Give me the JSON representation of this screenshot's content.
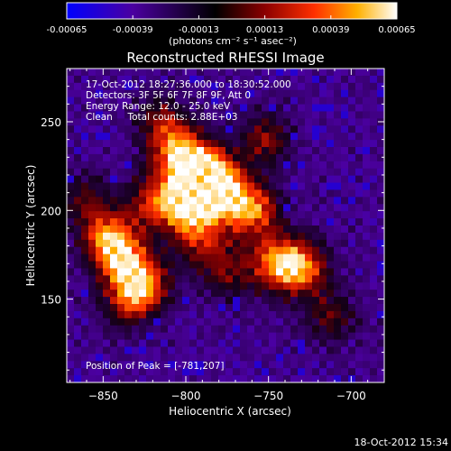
{
  "chart_data": {
    "type": "heatmap",
    "title": "Reconstructed RHESSI Image",
    "xlabel": "Heliocentric X (arcsec)",
    "ylabel": "Heliocentric Y (arcsec)",
    "xlim": [
      -872,
      -680
    ],
    "ylim": [
      103,
      280
    ],
    "x_ticks": [
      -850,
      -800,
      -750,
      -700
    ],
    "y_ticks": [
      150,
      200,
      250
    ],
    "colorbar": {
      "unit_label": "(photons cm⁻² s⁻¹ asec⁻²)",
      "range": [
        -0.00065,
        0.00065
      ],
      "tick_values": [
        -0.00065,
        -0.00039,
        -0.00013,
        0.00013,
        0.00039,
        0.00065
      ],
      "tick_labels": [
        "-0.00065",
        "-0.00039",
        "-0.00013",
        "0.00013",
        "0.00039",
        "0.00065"
      ],
      "colormap": [
        "#0000ff",
        "#4b00a0",
        "#000000",
        "#8b0000",
        "#ff3000",
        "#ffb000",
        "#ffffff"
      ]
    },
    "annotations": [
      "17-Oct-2012 18:27:36.000 to 18:30:52.000",
      "Detectors: 3F 5F 6F 7F 8F 9F, Att 0",
      "Energy Range: 12.0 - 25.0 keV",
      "Clean     Total counts: 2.88E+03"
    ],
    "peak_label": "Position of Peak = [-781,207]",
    "peak_position": [
      -781,
      207
    ],
    "emission_components": [
      {
        "x": -780,
        "y": 212,
        "peak": 1.0
      },
      {
        "x": -800,
        "y": 203,
        "peak": 0.85
      },
      {
        "x": -790,
        "y": 222,
        "peak": 0.82
      },
      {
        "x": -805,
        "y": 232,
        "peak": 0.75
      },
      {
        "x": -840,
        "y": 175,
        "peak": 0.72
      },
      {
        "x": -825,
        "y": 160,
        "peak": 0.7
      },
      {
        "x": -848,
        "y": 185,
        "peak": 0.55
      },
      {
        "x": -835,
        "y": 150,
        "peak": 0.5
      },
      {
        "x": -760,
        "y": 200,
        "peak": 0.78
      },
      {
        "x": -745,
        "y": 170,
        "peak": 0.68
      },
      {
        "x": -730,
        "y": 168,
        "peak": 0.7
      },
      {
        "x": -752,
        "y": 240,
        "peak": 0.45
      },
      {
        "x": -815,
        "y": 250,
        "peak": 0.4
      },
      {
        "x": -860,
        "y": 205,
        "peak": 0.35
      },
      {
        "x": -712,
        "y": 140,
        "peak": 0.35
      },
      {
        "x": -790,
        "y": 185,
        "peak": 0.5
      },
      {
        "x": -775,
        "y": 165,
        "peak": 0.4
      },
      {
        "x": -820,
        "y": 205,
        "peak": 0.55
      }
    ]
  },
  "footer": {
    "timestamp": "18-Oct-2012 15:34"
  }
}
